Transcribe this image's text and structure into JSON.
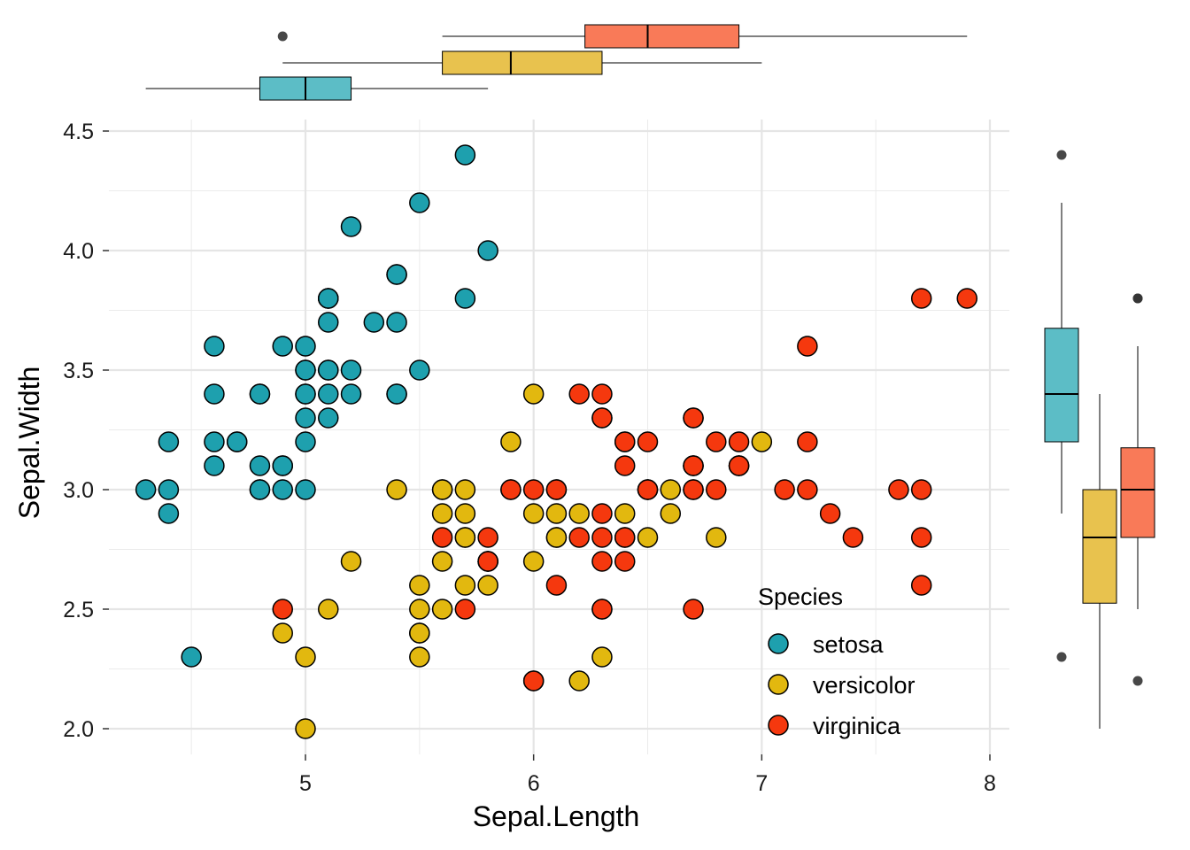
{
  "chart_data": {
    "type": "scatter",
    "title": "",
    "xlabel": "Sepal.Length",
    "ylabel": "Sepal.Width",
    "xlim": [
      4.2,
      8.06
    ],
    "ylim": [
      1.9,
      4.5
    ],
    "x_ticks": [
      5,
      6,
      7,
      8
    ],
    "x_tick_labels": [
      "5",
      "6",
      "7",
      "8"
    ],
    "y_ticks": [
      2.0,
      2.5,
      3.0,
      3.5,
      4.0,
      4.5
    ],
    "y_tick_labels": [
      "2.0",
      "2.5",
      "3.0",
      "3.5",
      "4.0",
      "4.5"
    ],
    "grid": true,
    "legend": {
      "title": "Species",
      "position": "bottom-right inside"
    },
    "series": [
      {
        "name": "setosa",
        "color": "#1EA0AE",
        "points": [
          [
            5.1,
            3.5
          ],
          [
            4.9,
            3.0
          ],
          [
            4.7,
            3.2
          ],
          [
            4.6,
            3.1
          ],
          [
            5.0,
            3.6
          ],
          [
            5.4,
            3.9
          ],
          [
            4.6,
            3.4
          ],
          [
            5.0,
            3.4
          ],
          [
            4.4,
            2.9
          ],
          [
            4.9,
            3.1
          ],
          [
            5.4,
            3.7
          ],
          [
            4.8,
            3.4
          ],
          [
            4.8,
            3.0
          ],
          [
            4.3,
            3.0
          ],
          [
            5.8,
            4.0
          ],
          [
            5.7,
            4.4
          ],
          [
            5.4,
            3.9
          ],
          [
            5.1,
            3.5
          ],
          [
            5.7,
            3.8
          ],
          [
            5.1,
            3.8
          ],
          [
            5.4,
            3.4
          ],
          [
            5.1,
            3.7
          ],
          [
            4.6,
            3.6
          ],
          [
            5.1,
            3.3
          ],
          [
            4.8,
            3.4
          ],
          [
            5.0,
            3.0
          ],
          [
            5.0,
            3.4
          ],
          [
            5.2,
            3.5
          ],
          [
            5.2,
            3.4
          ],
          [
            4.7,
            3.2
          ],
          [
            4.8,
            3.1
          ],
          [
            5.4,
            3.4
          ],
          [
            5.2,
            4.1
          ],
          [
            5.5,
            4.2
          ],
          [
            4.9,
            3.1
          ],
          [
            5.0,
            3.2
          ],
          [
            5.5,
            3.5
          ],
          [
            4.9,
            3.6
          ],
          [
            4.4,
            3.0
          ],
          [
            5.1,
            3.4
          ],
          [
            5.0,
            3.5
          ],
          [
            4.5,
            2.3
          ],
          [
            4.4,
            3.2
          ],
          [
            5.0,
            3.5
          ],
          [
            5.1,
            3.8
          ],
          [
            4.8,
            3.0
          ],
          [
            5.1,
            3.8
          ],
          [
            4.6,
            3.2
          ],
          [
            5.3,
            3.7
          ],
          [
            5.0,
            3.3
          ]
        ]
      },
      {
        "name": "versicolor",
        "color": "#E2B80F",
        "points": [
          [
            7.0,
            3.2
          ],
          [
            6.4,
            3.2
          ],
          [
            6.9,
            3.1
          ],
          [
            5.5,
            2.3
          ],
          [
            6.5,
            2.8
          ],
          [
            5.7,
            2.8
          ],
          [
            6.3,
            3.3
          ],
          [
            4.9,
            2.4
          ],
          [
            6.6,
            2.9
          ],
          [
            5.2,
            2.7
          ],
          [
            5.0,
            2.0
          ],
          [
            5.9,
            3.0
          ],
          [
            6.0,
            2.2
          ],
          [
            6.1,
            2.9
          ],
          [
            5.6,
            2.9
          ],
          [
            6.7,
            3.1
          ],
          [
            5.6,
            3.0
          ],
          [
            5.8,
            2.7
          ],
          [
            6.2,
            2.2
          ],
          [
            5.6,
            2.5
          ],
          [
            5.9,
            3.2
          ],
          [
            6.1,
            2.8
          ],
          [
            6.3,
            2.5
          ],
          [
            6.1,
            2.8
          ],
          [
            6.4,
            2.9
          ],
          [
            6.6,
            3.0
          ],
          [
            6.8,
            2.8
          ],
          [
            6.7,
            3.0
          ],
          [
            6.0,
            2.9
          ],
          [
            5.7,
            2.6
          ],
          [
            5.5,
            2.4
          ],
          [
            5.5,
            2.4
          ],
          [
            5.8,
            2.7
          ],
          [
            6.0,
            2.7
          ],
          [
            5.4,
            3.0
          ],
          [
            6.0,
            3.4
          ],
          [
            6.7,
            3.1
          ],
          [
            6.3,
            2.3
          ],
          [
            5.6,
            3.0
          ],
          [
            5.5,
            2.5
          ],
          [
            5.5,
            2.6
          ],
          [
            6.1,
            3.0
          ],
          [
            5.8,
            2.6
          ],
          [
            5.0,
            2.3
          ],
          [
            5.6,
            2.7
          ],
          [
            5.7,
            3.0
          ],
          [
            5.7,
            2.9
          ],
          [
            6.2,
            2.9
          ],
          [
            5.1,
            2.5
          ],
          [
            5.7,
            2.8
          ]
        ]
      },
      {
        "name": "virginica",
        "color": "#F5380E",
        "points": [
          [
            6.3,
            3.3
          ],
          [
            5.8,
            2.7
          ],
          [
            7.1,
            3.0
          ],
          [
            6.3,
            2.9
          ],
          [
            6.5,
            3.0
          ],
          [
            7.6,
            3.0
          ],
          [
            4.9,
            2.5
          ],
          [
            7.3,
            2.9
          ],
          [
            6.7,
            2.5
          ],
          [
            7.2,
            3.6
          ],
          [
            6.5,
            3.2
          ],
          [
            6.4,
            2.7
          ],
          [
            6.8,
            3.0
          ],
          [
            5.7,
            2.5
          ],
          [
            5.8,
            2.8
          ],
          [
            6.4,
            3.2
          ],
          [
            6.5,
            3.0
          ],
          [
            7.7,
            3.8
          ],
          [
            7.7,
            2.6
          ],
          [
            6.0,
            2.2
          ],
          [
            6.9,
            3.2
          ],
          [
            5.6,
            2.8
          ],
          [
            7.7,
            2.8
          ],
          [
            6.3,
            2.7
          ],
          [
            6.7,
            3.3
          ],
          [
            7.2,
            3.2
          ],
          [
            6.2,
            2.8
          ],
          [
            6.1,
            3.0
          ],
          [
            6.4,
            2.8
          ],
          [
            7.2,
            3.0
          ],
          [
            7.4,
            2.8
          ],
          [
            7.9,
            3.8
          ],
          [
            6.4,
            2.8
          ],
          [
            6.3,
            2.8
          ],
          [
            6.1,
            2.6
          ],
          [
            7.7,
            3.0
          ],
          [
            6.3,
            3.4
          ],
          [
            6.4,
            3.1
          ],
          [
            6.0,
            3.0
          ],
          [
            6.9,
            3.1
          ],
          [
            6.7,
            3.1
          ],
          [
            6.9,
            3.1
          ],
          [
            5.8,
            2.7
          ],
          [
            6.8,
            3.2
          ],
          [
            6.7,
            3.3
          ],
          [
            6.7,
            3.0
          ],
          [
            6.3,
            2.5
          ],
          [
            6.5,
            3.0
          ],
          [
            6.2,
            3.4
          ],
          [
            5.9,
            3.0
          ]
        ]
      }
    ],
    "marginal_boxplots": {
      "x": [
        {
          "name": "setosa",
          "color": "#5CBDC6",
          "min": 4.3,
          "q1": 4.8,
          "median": 5.0,
          "q3": 5.2,
          "max": 5.8,
          "outliers": []
        },
        {
          "name": "versicolor",
          "color": "#E8C24E",
          "min": 4.9,
          "q1": 5.6,
          "median": 5.9,
          "q3": 6.3,
          "max": 7.0,
          "outliers": []
        },
        {
          "name": "virginica",
          "color": "#F97A58",
          "min": 5.6,
          "q1": 6.225,
          "median": 6.5,
          "q3": 6.9,
          "max": 7.9,
          "outliers": [
            4.9
          ]
        }
      ],
      "y": [
        {
          "name": "setosa",
          "color": "#5CBDC6",
          "min": 2.9,
          "q1": 3.2,
          "median": 3.4,
          "q3": 3.675,
          "max": 4.2,
          "outliers": [
            4.4,
            2.3
          ]
        },
        {
          "name": "versicolor",
          "color": "#E8C24E",
          "min": 2.0,
          "q1": 2.525,
          "median": 2.8,
          "q3": 3.0,
          "max": 3.4,
          "outliers": []
        },
        {
          "name": "virginica",
          "color": "#F97A58",
          "min": 2.5,
          "q1": 2.8,
          "median": 3.0,
          "q3": 3.175,
          "max": 3.6,
          "outliers": [
            3.8,
            3.8,
            2.2
          ]
        }
      ]
    }
  }
}
